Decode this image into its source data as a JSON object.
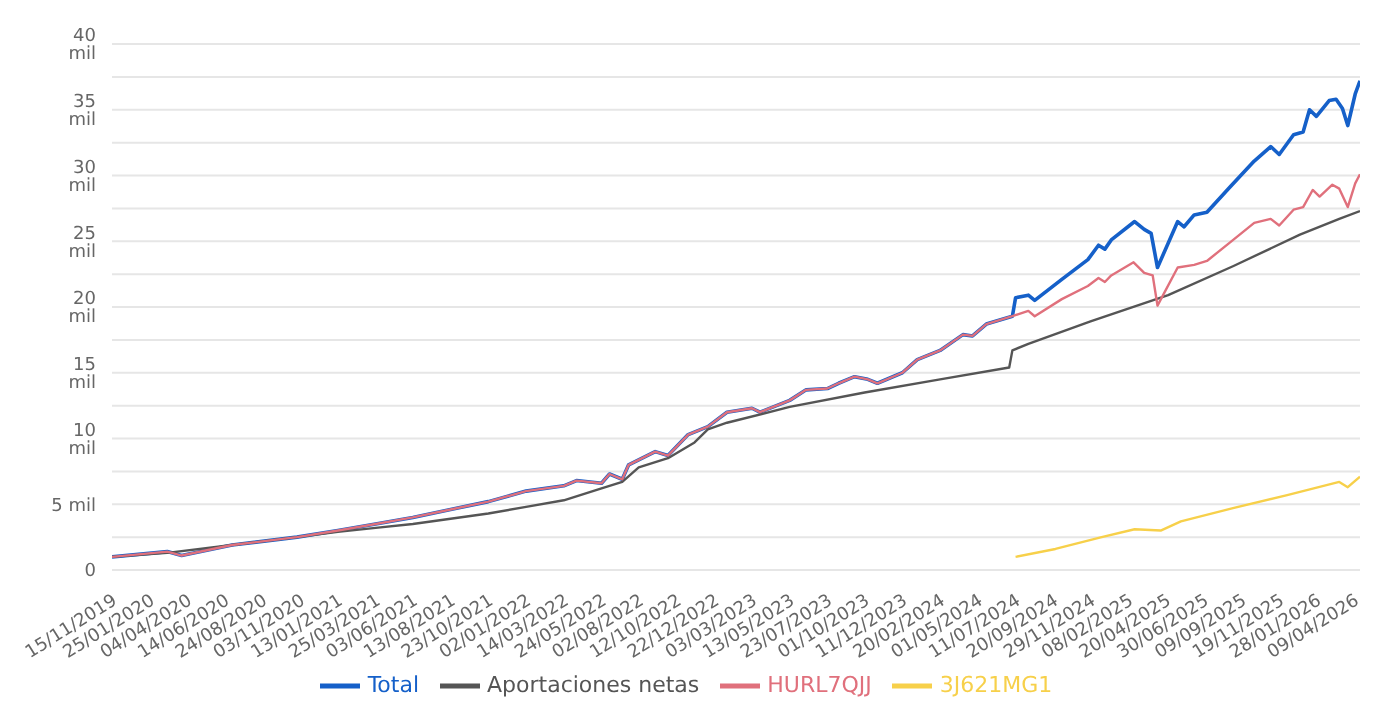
{
  "chart_data": {
    "type": "line",
    "xlim": [
      "2019-11-15",
      "2026-04-20"
    ],
    "xticks": [
      {
        "value": "2019-11-15",
        "label": "15/11/2019"
      },
      {
        "value": "2020-01-25",
        "label": "25/01/2020"
      },
      {
        "value": "2020-04-04",
        "label": "04/04/2020"
      },
      {
        "value": "2020-06-14",
        "label": "14/06/2020"
      },
      {
        "value": "2020-08-24",
        "label": "24/08/2020"
      },
      {
        "value": "2020-11-03",
        "label": "03/11/2020"
      },
      {
        "value": "2021-01-13",
        "label": "13/01/2021"
      },
      {
        "value": "2021-03-25",
        "label": "25/03/2021"
      },
      {
        "value": "2021-06-03",
        "label": "03/06/2021"
      },
      {
        "value": "2021-08-13",
        "label": "13/08/2021"
      },
      {
        "value": "2021-10-23",
        "label": "23/10/2021"
      },
      {
        "value": "2022-01-02",
        "label": "02/01/2022"
      },
      {
        "value": "2022-03-14",
        "label": "14/03/2022"
      },
      {
        "value": "2022-05-24",
        "label": "24/05/2022"
      },
      {
        "value": "2022-08-02",
        "label": "02/08/2022"
      },
      {
        "value": "2022-10-12",
        "label": "12/10/2022"
      },
      {
        "value": "2022-12-22",
        "label": "22/12/2022"
      },
      {
        "value": "2023-03-03",
        "label": "03/03/2023"
      },
      {
        "value": "2023-05-13",
        "label": "13/05/2023"
      },
      {
        "value": "2023-07-23",
        "label": "23/07/2023"
      },
      {
        "value": "2023-10-01",
        "label": "01/10/2023"
      },
      {
        "value": "2023-12-11",
        "label": "11/12/2023"
      },
      {
        "value": "2024-02-20",
        "label": "20/02/2024"
      },
      {
        "value": "2024-05-01",
        "label": "01/05/2024"
      },
      {
        "value": "2024-07-11",
        "label": "11/07/2024"
      },
      {
        "value": "2024-09-20",
        "label": "20/09/2024"
      },
      {
        "value": "2024-11-29",
        "label": "29/11/2024"
      },
      {
        "value": "2025-02-08",
        "label": "08/02/2025"
      },
      {
        "value": "2025-04-20",
        "label": "20/04/2025"
      },
      {
        "value": "2025-06-30",
        "label": "30/06/2025"
      },
      {
        "value": "2025-09-09",
        "label": "09/09/2025"
      },
      {
        "value": "2025-11-19",
        "label": "19/11/2025"
      },
      {
        "value": "2026-01-28",
        "label": "28/01/2026"
      },
      {
        "value": "2026-04-09",
        "label": "09/04/2026"
      }
    ],
    "ylim": [
      0,
      40
    ],
    "yticks": [
      0,
      {
        "value": 2.5,
        "label": null
      },
      {
        "value": 5,
        "label": "5 mil"
      },
      {
        "value": 7.5,
        "label": null
      },
      {
        "value": 10,
        "label": "10 mil"
      },
      {
        "value": 12.5,
        "label": null
      },
      {
        "value": 15,
        "label": "15 mil"
      },
      {
        "value": 17.5,
        "label": null
      },
      {
        "value": 20,
        "label": "20 mil"
      },
      {
        "value": 22.5,
        "label": null
      },
      {
        "value": 25,
        "label": "25 mil"
      },
      {
        "value": 27.5,
        "label": null
      },
      {
        "value": 30,
        "label": "30 mil"
      },
      {
        "value": 32.5,
        "label": null
      },
      {
        "value": 35,
        "label": "35 mil"
      },
      {
        "value": 37.5,
        "label": null
      },
      {
        "value": 40,
        "label": "40 mil"
      }
    ],
    "grid": "y",
    "legend": "bottom",
    "series": [
      {
        "name": "Total",
        "color": "#1560c9",
        "x": [
          "2019-11-15",
          "2020-02-27",
          "2020-03-25",
          "2020-06-28",
          "2020-10-28",
          "2021-01-13",
          "2021-03-25",
          "2021-06-03",
          "2021-08-13",
          "2021-10-23",
          "2022-01-02",
          "2022-03-14",
          "2022-04-07",
          "2022-05-24",
          "2022-06-08",
          "2022-07-02",
          "2022-07-14",
          "2022-09-02",
          "2022-09-26",
          "2022-11-03",
          "2022-12-10",
          "2023-01-15",
          "2023-03-03",
          "2023-03-18",
          "2023-05-13",
          "2023-06-13",
          "2023-07-23",
          "2023-08-13",
          "2023-09-12",
          "2023-10-07",
          "2023-10-25",
          "2023-12-11",
          "2024-01-08",
          "2024-02-20",
          "2024-04-03",
          "2024-04-21",
          "2024-05-17",
          "2024-07-05",
          "2024-07-11",
          "2024-08-04",
          "2024-08-16",
          "2024-10-06",
          "2024-11-24",
          "2024-12-14",
          "2024-12-26",
          "2025-01-07",
          "2025-02-20",
          "2025-03-10",
          "2025-03-23",
          "2025-04-04",
          "2025-05-12",
          "2025-05-24",
          "2025-06-12",
          "2025-07-06",
          "2025-08-18",
          "2025-10-03",
          "2025-11-03",
          "2025-11-19",
          "2025-12-16",
          "2026-01-03",
          "2026-01-15",
          "2026-01-28",
          "2026-02-21",
          "2026-03-06",
          "2026-03-18",
          "2026-03-28",
          "2026-04-11",
          "2026-04-20"
        ],
        "values": [
          1.0,
          1.4,
          1.1,
          1.9,
          2.5,
          3.0,
          3.5,
          4.0,
          4.6,
          5.2,
          6.0,
          6.4,
          6.8,
          6.6,
          7.3,
          6.9,
          8.0,
          9.0,
          8.7,
          10.3,
          10.9,
          12.0,
          12.3,
          12.0,
          12.9,
          13.7,
          13.8,
          14.2,
          14.7,
          14.5,
          14.2,
          15.0,
          16.0,
          16.7,
          17.9,
          17.8,
          18.7,
          19.3,
          20.7,
          20.9,
          20.5,
          22.1,
          23.6,
          24.7,
          24.4,
          25.1,
          26.5,
          25.9,
          25.6,
          23.0,
          26.5,
          26.1,
          27.0,
          27.2,
          29.1,
          31.1,
          32.2,
          31.6,
          33.1,
          33.3,
          35.0,
          34.5,
          35.7,
          35.8,
          35.1,
          33.8,
          36.2,
          37.2
        ]
      },
      {
        "name": "Aportaciones netas",
        "color": "#555555",
        "x": [
          "2019-11-15",
          "2020-02-27",
          "2020-06-28",
          "2020-10-28",
          "2021-01-13",
          "2021-03-25",
          "2021-06-03",
          "2021-08-13",
          "2021-10-23",
          "2022-01-02",
          "2022-03-14",
          "2022-05-24",
          "2022-07-02",
          "2022-08-02",
          "2022-09-26",
          "2022-11-15",
          "2022-12-10",
          "2023-01-15",
          "2023-05-13",
          "2023-10-01",
          "2024-02-20",
          "2024-06-29",
          "2024-07-05",
          "2024-08-04",
          "2024-11-29",
          "2025-04-24",
          "2025-08-24",
          "2025-12-28",
          "2026-03-12",
          "2026-04-20"
        ],
        "values": [
          1.0,
          1.3,
          1.9,
          2.5,
          2.9,
          3.2,
          3.5,
          3.9,
          4.3,
          4.8,
          5.3,
          6.2,
          6.7,
          7.8,
          8.5,
          9.7,
          10.7,
          11.2,
          12.4,
          13.5,
          14.5,
          15.4,
          16.7,
          17.2,
          18.9,
          20.9,
          23.1,
          25.5,
          26.7,
          27.3
        ]
      },
      {
        "name": "HURL7QJJ",
        "color": "#e0707c",
        "x": [
          "2019-11-15",
          "2020-02-27",
          "2020-03-25",
          "2020-06-28",
          "2020-10-28",
          "2021-01-13",
          "2021-03-25",
          "2021-06-03",
          "2021-08-13",
          "2021-10-23",
          "2022-01-02",
          "2022-03-14",
          "2022-04-07",
          "2022-05-24",
          "2022-06-08",
          "2022-07-02",
          "2022-07-14",
          "2022-09-02",
          "2022-09-26",
          "2022-11-03",
          "2022-12-10",
          "2023-01-15",
          "2023-03-03",
          "2023-03-18",
          "2023-05-13",
          "2023-06-13",
          "2023-07-23",
          "2023-08-13",
          "2023-09-12",
          "2023-10-07",
          "2023-10-25",
          "2023-12-11",
          "2024-01-08",
          "2024-02-20",
          "2024-04-03",
          "2024-04-21",
          "2024-05-17",
          "2024-07-05",
          "2024-08-04",
          "2024-08-16",
          "2024-10-06",
          "2024-11-24",
          "2024-12-14",
          "2024-12-26",
          "2025-01-07",
          "2025-02-18",
          "2025-03-10",
          "2025-03-26",
          "2025-04-04",
          "2025-05-12",
          "2025-06-12",
          "2025-07-06",
          "2025-08-18",
          "2025-10-03",
          "2025-11-03",
          "2025-11-19",
          "2025-12-16",
          "2026-01-03",
          "2026-01-21",
          "2026-02-03",
          "2026-02-27",
          "2026-03-12",
          "2026-03-28",
          "2026-04-11",
          "2026-04-20"
        ],
        "values": [
          1.0,
          1.4,
          1.1,
          1.9,
          2.5,
          3.0,
          3.5,
          4.0,
          4.6,
          5.2,
          6.0,
          6.4,
          6.8,
          6.6,
          7.3,
          6.9,
          8.0,
          9.0,
          8.7,
          10.3,
          10.9,
          12.0,
          12.3,
          12.0,
          12.9,
          13.7,
          13.8,
          14.2,
          14.7,
          14.5,
          14.2,
          15.0,
          16.0,
          16.7,
          17.9,
          17.8,
          18.7,
          19.3,
          19.7,
          19.3,
          20.6,
          21.6,
          22.2,
          21.9,
          22.4,
          23.4,
          22.6,
          22.4,
          20.1,
          23.0,
          23.2,
          23.5,
          24.9,
          26.4,
          26.7,
          26.2,
          27.4,
          27.6,
          28.9,
          28.4,
          29.3,
          29.0,
          27.6,
          29.4,
          30.1
        ]
      },
      {
        "name": "3J621MG1",
        "color": "#f7d04a",
        "x": [
          "2024-07-11",
          "2024-09-24",
          "2024-12-20",
          "2025-02-20",
          "2025-04-10",
          "2025-05-18",
          "2025-08-24",
          "2025-12-04",
          "2026-03-12",
          "2026-03-28",
          "2026-04-20"
        ],
        "values": [
          1.0,
          1.6,
          2.5,
          3.1,
          3.0,
          3.7,
          4.7,
          5.7,
          6.7,
          6.3,
          7.1
        ]
      }
    ]
  }
}
